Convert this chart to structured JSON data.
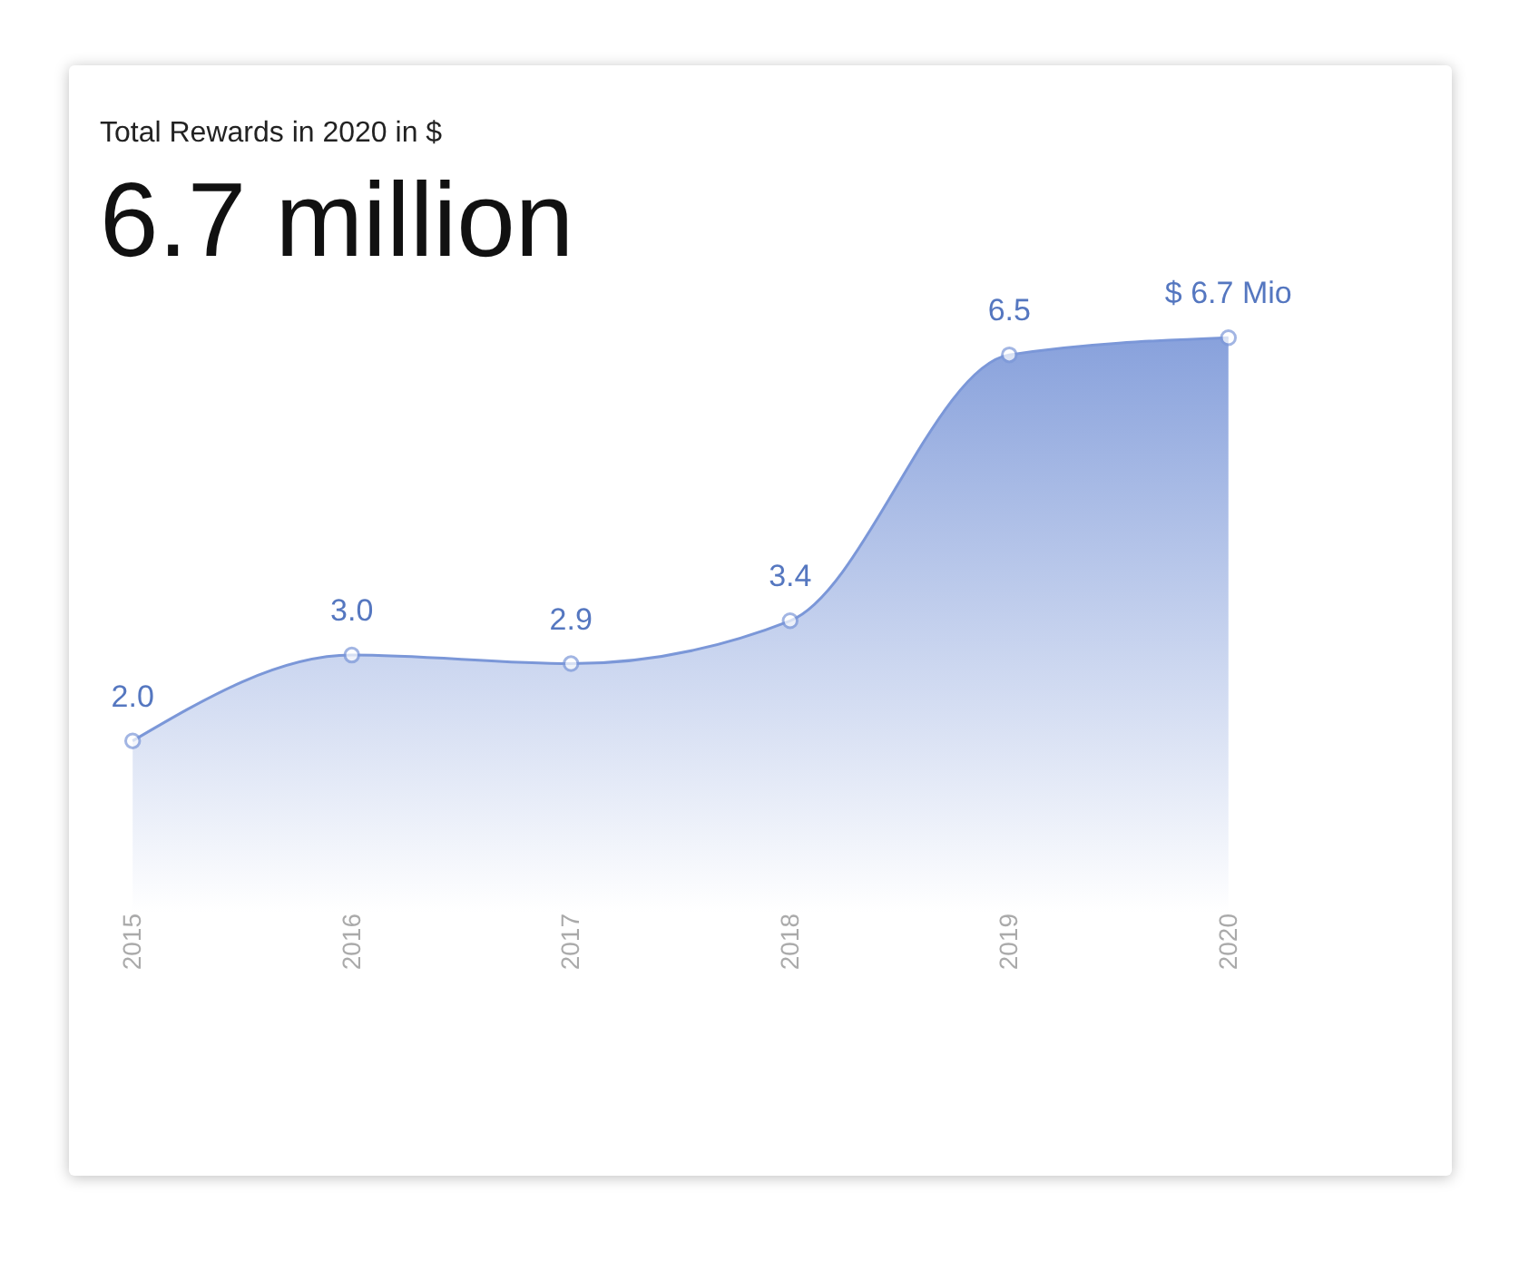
{
  "chart_data": {
    "type": "area",
    "title": "Total Rewards in 2020 in $",
    "subtitle": "6.7 million",
    "categories": [
      "2015",
      "2016",
      "2017",
      "2018",
      "2019",
      "2020"
    ],
    "series": [
      {
        "color": "#7b97d8",
        "values": [
          2.0,
          3.0,
          2.9,
          3.4,
          6.5,
          6.7
        ],
        "value_labels": [
          "2.0",
          "3.0",
          "2.9",
          "3.4",
          "6.5",
          "$ 6.7 Mio"
        ]
      }
    ],
    "marker": "circle"
  }
}
